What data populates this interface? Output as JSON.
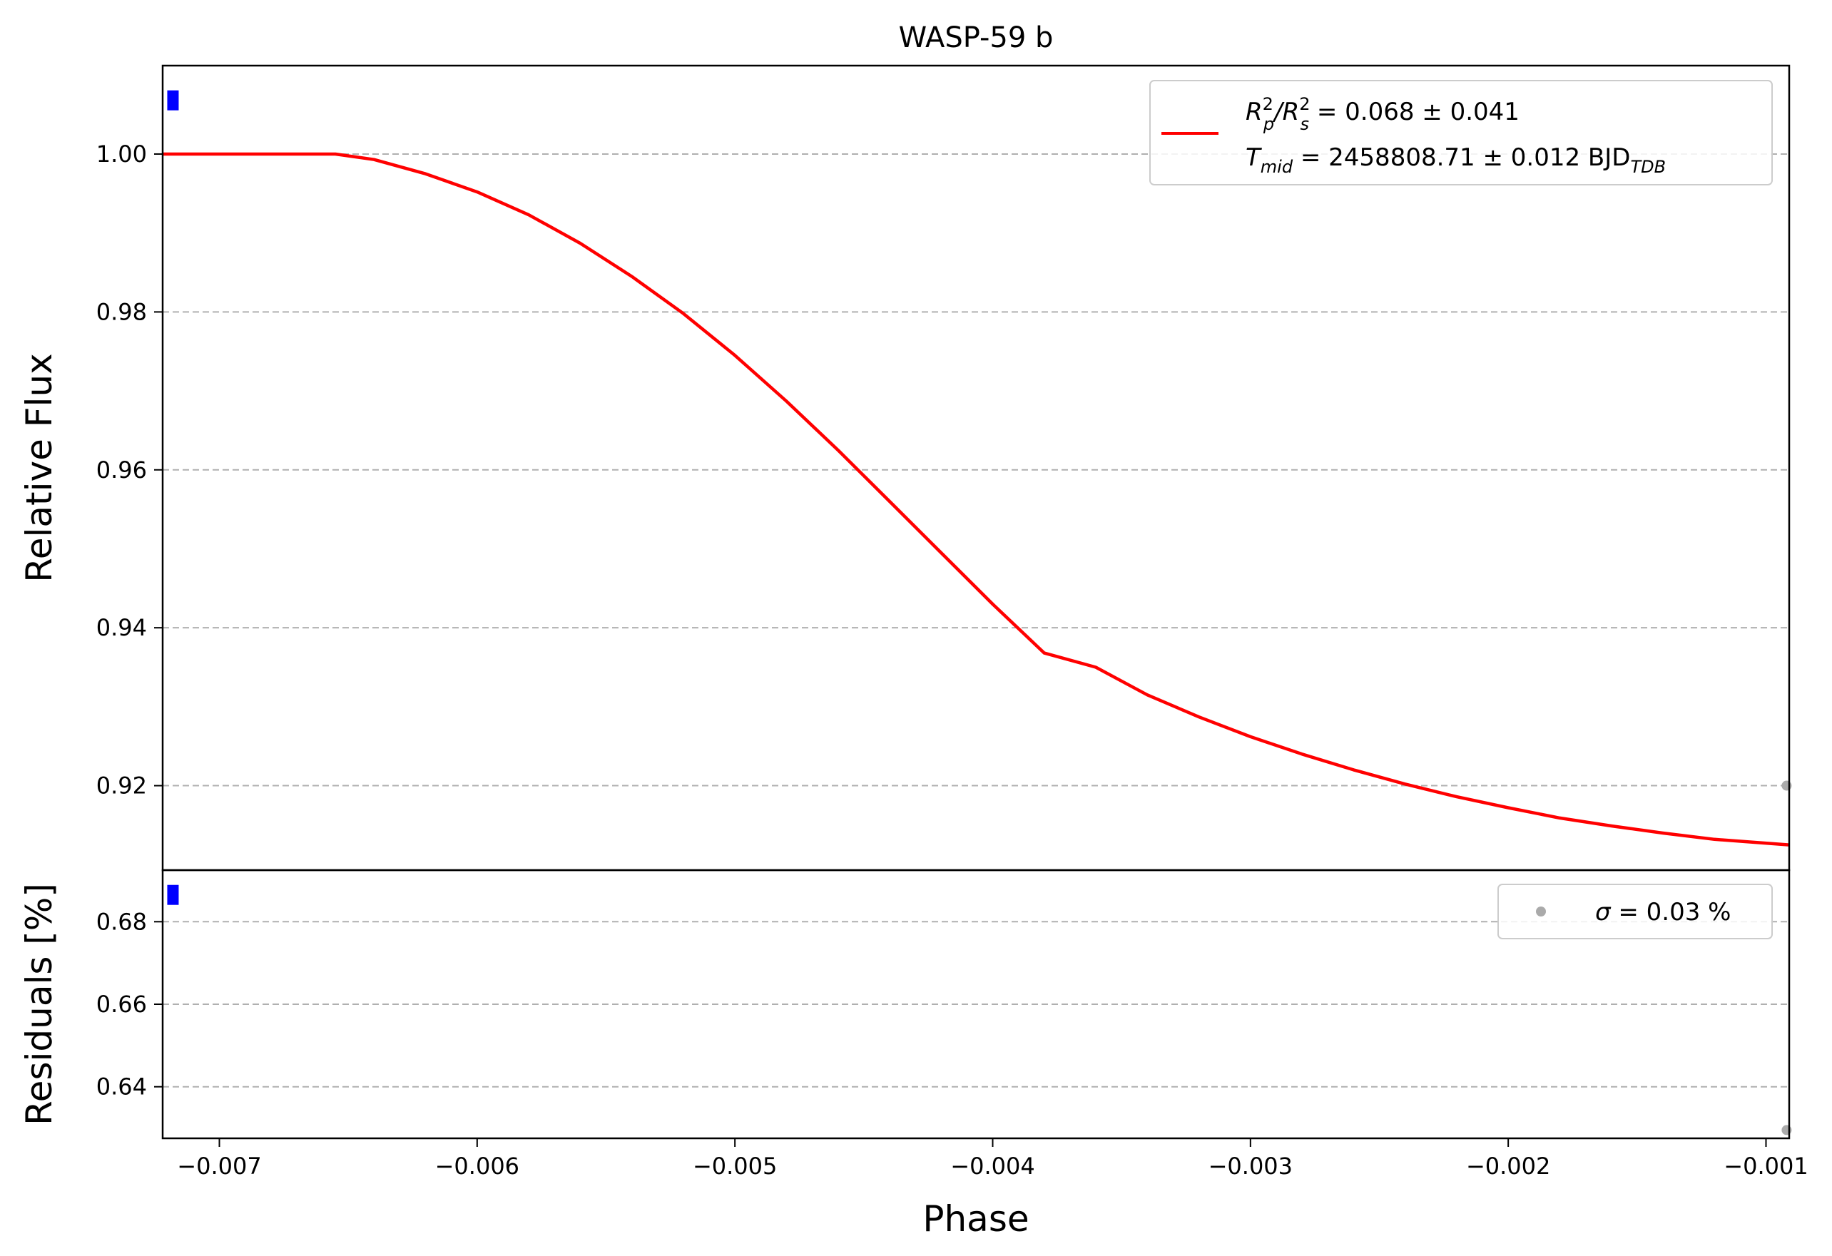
{
  "chart_data": [
    {
      "id": "main",
      "type": "line",
      "title": "WASP-59 b",
      "ylabel": "Relative Flux",
      "xlim": [
        -0.00722,
        -0.00091
      ],
      "ylim": [
        0.9093,
        1.0112
      ],
      "yticks": [
        0.92,
        0.94,
        0.96,
        0.98,
        1.0
      ],
      "ytick_labels": [
        "0.92",
        "0.94",
        "0.96",
        "0.98",
        "1.00"
      ],
      "grid": "y-dashed",
      "legend": {
        "placement": "upper-right",
        "line1": {
          "base": "R",
          "sup1": "2",
          "sub1": "p",
          "mid": "/R",
          "sup2": "2",
          "sub2": "s",
          "rest": " = 0.068 ± 0.041"
        },
        "line2": {
          "base": "T",
          "sub": "mid",
          "rest": " = 2458808.71 ± 0.012 BJD",
          "sub2": "TDB"
        }
      },
      "series": [
        {
          "color": "#ff0000",
          "x": [
            -0.00722,
            -0.00655,
            -0.0064,
            -0.0062,
            -0.006,
            -0.0058,
            -0.0056,
            -0.0054,
            -0.0052,
            -0.005,
            -0.0048,
            -0.0046,
            -0.0044,
            -0.0042,
            -0.004,
            -0.0038,
            -0.0036,
            -0.0034,
            -0.0032,
            -0.003,
            -0.0028,
            -0.0026,
            -0.0024,
            -0.0022,
            -0.002,
            -0.0018,
            -0.0016,
            -0.0014,
            -0.0012,
            -0.00091
          ],
          "y": [
            1.0,
            1.0,
            0.9993,
            0.9975,
            0.9952,
            0.9923,
            0.9887,
            0.9845,
            0.9798,
            0.9745,
            0.9687,
            0.9625,
            0.956,
            0.9495,
            0.943,
            0.9368,
            0.935,
            0.9315,
            0.9287,
            0.9262,
            0.924,
            0.922,
            0.9202,
            0.9186,
            0.9172,
            0.9159,
            0.9149,
            0.914,
            0.9132,
            0.9125
          ]
        }
      ],
      "points": [
        {
          "x": -0.00718,
          "y": 1.0068,
          "color": "#0000ff"
        },
        {
          "x": -0.00092,
          "y": 0.92,
          "color": "#aaaaaa"
        }
      ]
    },
    {
      "id": "residuals",
      "type": "scatter",
      "xlabel": "Phase",
      "ylabel": "Residuals [%]",
      "xlim": [
        -0.00722,
        -0.00091
      ],
      "ylim": [
        0.6275,
        0.6925
      ],
      "xticks": [
        -0.007,
        -0.006,
        -0.005,
        -0.004,
        -0.003,
        -0.002,
        -0.001
      ],
      "xtick_labels": [
        "−0.007",
        "−0.006",
        "−0.005",
        "−0.004",
        "−0.003",
        "−0.002",
        "−0.001"
      ],
      "yticks": [
        0.64,
        0.66,
        0.68
      ],
      "ytick_labels": [
        "0.64",
        "0.66",
        "0.68"
      ],
      "grid": "y-dashed",
      "legend": {
        "placement": "upper-right",
        "symbol": "σ",
        "rest": " = 0.03 %"
      },
      "points": [
        {
          "x": -0.00718,
          "y": 0.6865,
          "color": "#0000ff"
        },
        {
          "x": -0.00092,
          "y": 0.6295,
          "color": "#aaaaaa"
        }
      ]
    }
  ]
}
